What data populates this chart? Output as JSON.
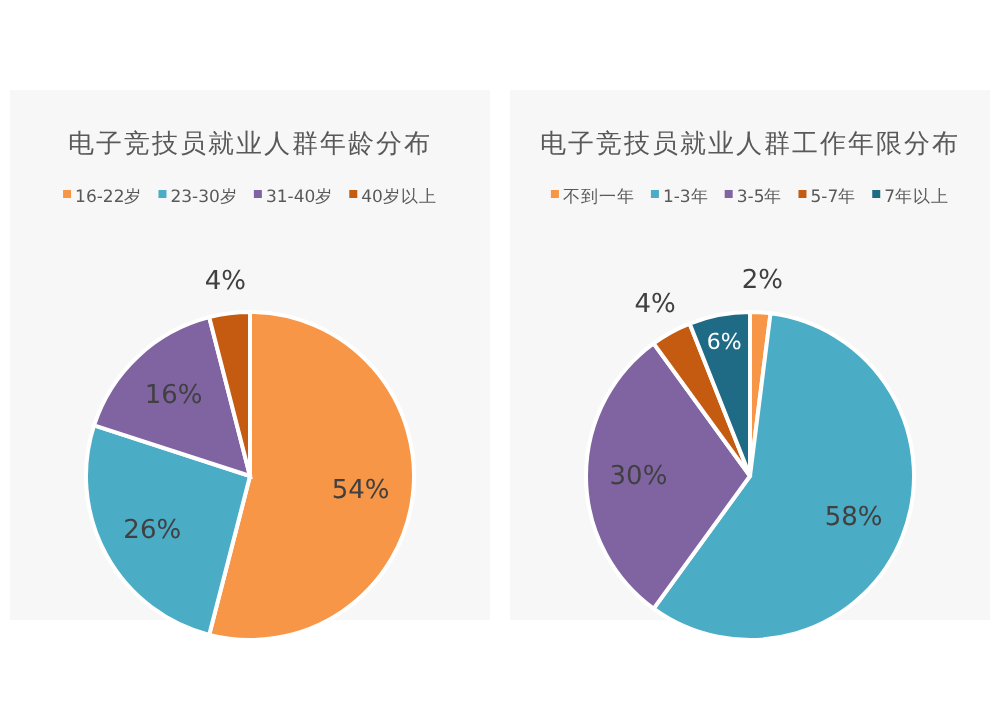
{
  "chart_data": [
    {
      "type": "pie",
      "title": "电子竞技员就业人群年龄分布",
      "categories": [
        "16-22岁",
        "23-30岁",
        "31-40岁",
        "40岁以上"
      ],
      "values": [
        54,
        26,
        16,
        4
      ],
      "value_labels": [
        "54%",
        "26%",
        "16%",
        "4%"
      ],
      "colors": [
        "#f79646",
        "#4bacc6",
        "#8064a2",
        "#c55a11"
      ],
      "legend": "top"
    },
    {
      "type": "pie",
      "title": "电子竞技员就业人群工作年限分布",
      "categories": [
        "不到一年",
        "1-3年",
        "3-5年",
        "5-7年",
        "7年以上"
      ],
      "values": [
        2,
        58,
        30,
        4,
        6
      ],
      "value_labels": [
        "2%",
        "58%",
        "30%",
        "4%",
        "6%"
      ],
      "colors": [
        "#f79646",
        "#4bacc6",
        "#8064a2",
        "#c55a11",
        "#1f6b85"
      ],
      "legend": "top"
    }
  ]
}
